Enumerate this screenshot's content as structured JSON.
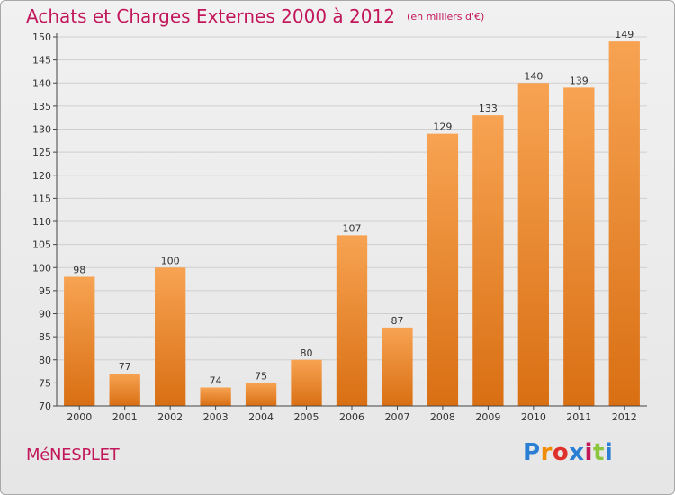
{
  "title": "Achats et Charges Externes 2000 à 2012",
  "subtitle": "(en milliers d'€)",
  "commune": "MéNESPLET",
  "logo": {
    "letters": [
      "P",
      "r",
      "o",
      "x",
      "i",
      "t",
      "i"
    ],
    "colors": [
      "#2a7fd4",
      "#f08c00",
      "#e0302b",
      "#2a7fd4",
      "#c2185b",
      "#8cc63f",
      "#2a7fd4"
    ]
  },
  "colors": {
    "bar_top": "#f7a352",
    "bar_bottom": "#d96f13",
    "axis": "#444444",
    "grid": "#cfcfcf",
    "title": "#c2185b"
  },
  "chart_data": {
    "type": "bar",
    "title": "Achats et Charges Externes 2000 à 2012",
    "subtitle": "(en milliers d'€)",
    "categories": [
      "2000",
      "2001",
      "2002",
      "2003",
      "2004",
      "2005",
      "2006",
      "2007",
      "2008",
      "2009",
      "2010",
      "2011",
      "2012"
    ],
    "values": [
      98,
      77,
      100,
      74,
      75,
      80,
      107,
      87,
      129,
      133,
      140,
      139,
      149
    ],
    "ylim": [
      70,
      150
    ],
    "ytick_step": 5,
    "grid": true,
    "legend": "none"
  }
}
